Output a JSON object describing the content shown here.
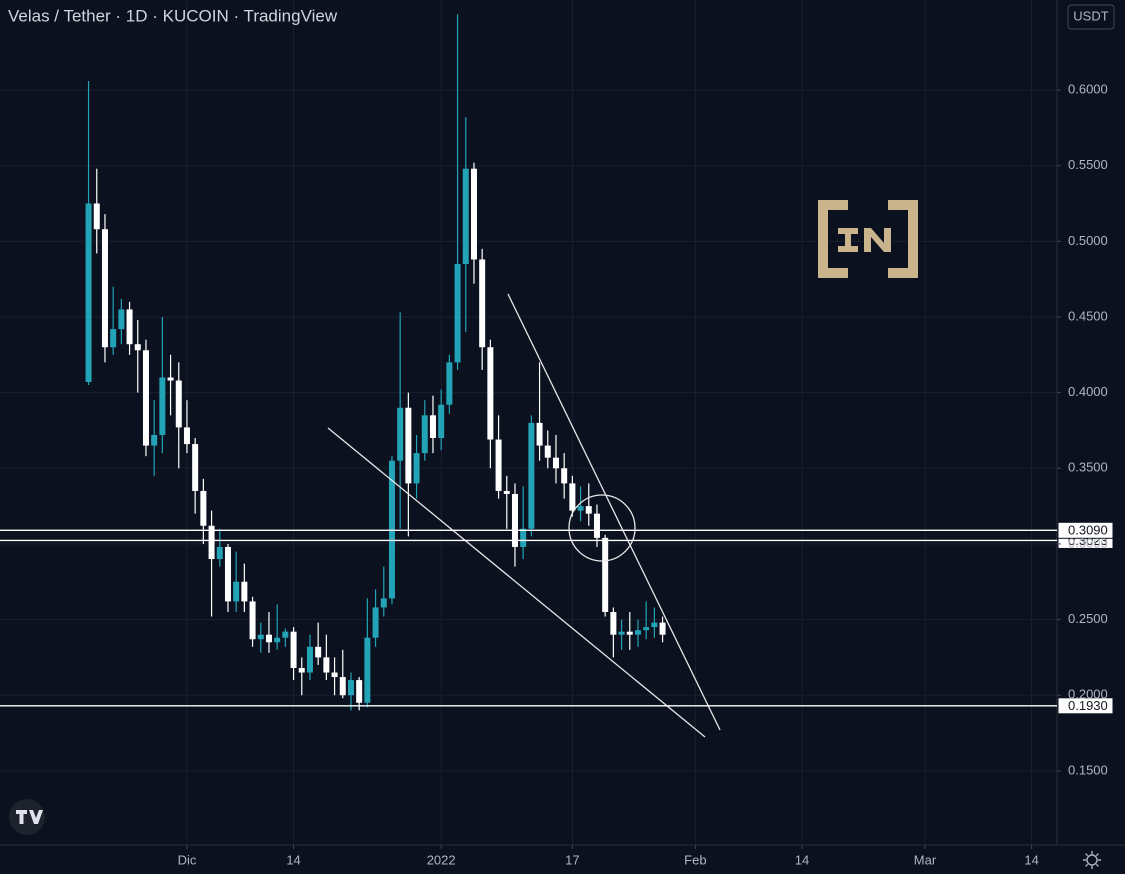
{
  "chart_data": {
    "type": "candlestick",
    "title": "Velas / Tether · 1D · KUCOIN · TradingView",
    "currency": "USDT",
    "up_color": "#22a3b6",
    "down_color": "#ffffff",
    "grid": true,
    "x": [
      0,
      1,
      2,
      3,
      4,
      5,
      6,
      7,
      8,
      9,
      10,
      11,
      12,
      13,
      14,
      15,
      16,
      17,
      18,
      19,
      20,
      21,
      22,
      23,
      24,
      25,
      26,
      27,
      28,
      29,
      30,
      31,
      32,
      33,
      34,
      35,
      36,
      37,
      38,
      39,
      40,
      41,
      42,
      43,
      44,
      45,
      46,
      47,
      48,
      49,
      50,
      51,
      52,
      53,
      54,
      55,
      56,
      57,
      58,
      59,
      60,
      61,
      62,
      63,
      64,
      65,
      66,
      67,
      68,
      69,
      70
    ],
    "open": [
      0.407,
      0.525,
      0.508,
      0.43,
      0.442,
      0.455,
      0.432,
      0.428,
      0.365,
      0.372,
      0.41,
      0.408,
      0.377,
      0.366,
      0.335,
      0.312,
      0.29,
      0.298,
      0.262,
      0.275,
      0.262,
      0.237,
      0.24,
      0.235,
      0.238,
      0.242,
      0.218,
      0.215,
      0.232,
      0.225,
      0.215,
      0.212,
      0.2,
      0.21,
      0.195,
      0.238,
      0.258,
      0.264,
      0.355,
      0.39,
      0.34,
      0.36,
      0.385,
      0.37,
      0.392,
      0.42,
      0.485,
      0.548,
      0.488,
      0.43,
      0.369,
      0.335,
      0.333,
      0.298,
      0.31,
      0.38,
      0.365,
      0.357,
      0.35,
      0.34,
      0.322,
      0.325,
      0.32,
      0.304,
      0.255,
      0.24,
      0.242,
      0.24,
      0.243,
      0.245,
      0.248
    ],
    "high": [
      0.606,
      0.548,
      0.518,
      0.47,
      0.462,
      0.46,
      0.448,
      0.435,
      0.395,
      0.45,
      0.425,
      0.42,
      0.395,
      0.37,
      0.343,
      0.322,
      0.31,
      0.3,
      0.295,
      0.287,
      0.265,
      0.248,
      0.255,
      0.26,
      0.244,
      0.245,
      0.225,
      0.24,
      0.248,
      0.24,
      0.225,
      0.23,
      0.215,
      0.212,
      0.264,
      0.27,
      0.285,
      0.358,
      0.453,
      0.4,
      0.372,
      0.395,
      0.398,
      0.402,
      0.425,
      0.65,
      0.582,
      0.552,
      0.495,
      0.435,
      0.385,
      0.345,
      0.34,
      0.338,
      0.385,
      0.42,
      0.375,
      0.372,
      0.36,
      0.345,
      0.338,
      0.34,
      0.326,
      0.306,
      0.258,
      0.25,
      0.255,
      0.25,
      0.262,
      0.258,
      0.252
    ],
    "low": [
      0.405,
      0.492,
      0.42,
      0.425,
      0.432,
      0.425,
      0.4,
      0.358,
      0.345,
      0.36,
      0.385,
      0.35,
      0.36,
      0.32,
      0.3,
      0.252,
      0.285,
      0.255,
      0.255,
      0.255,
      0.232,
      0.228,
      0.228,
      0.23,
      0.232,
      0.21,
      0.2,
      0.21,
      0.22,
      0.21,
      0.2,
      0.198,
      0.19,
      0.19,
      0.192,
      0.232,
      0.252,
      0.26,
      0.31,
      0.305,
      0.33,
      0.355,
      0.36,
      0.362,
      0.386,
      0.415,
      0.44,
      0.472,
      0.415,
      0.35,
      0.33,
      0.31,
      0.285,
      0.29,
      0.305,
      0.355,
      0.35,
      0.34,
      0.33,
      0.318,
      0.315,
      0.312,
      0.298,
      0.252,
      0.225,
      0.23,
      0.23,
      0.232,
      0.237,
      0.238,
      0.235
    ],
    "close": [
      0.525,
      0.508,
      0.43,
      0.442,
      0.455,
      0.432,
      0.428,
      0.365,
      0.372,
      0.41,
      0.408,
      0.377,
      0.366,
      0.335,
      0.312,
      0.29,
      0.298,
      0.262,
      0.275,
      0.262,
      0.237,
      0.24,
      0.235,
      0.238,
      0.242,
      0.218,
      0.215,
      0.232,
      0.225,
      0.215,
      0.212,
      0.2,
      0.21,
      0.195,
      0.238,
      0.258,
      0.264,
      0.355,
      0.39,
      0.34,
      0.36,
      0.385,
      0.37,
      0.392,
      0.42,
      0.485,
      0.548,
      0.488,
      0.43,
      0.369,
      0.335,
      0.333,
      0.298,
      0.31,
      0.38,
      0.365,
      0.357,
      0.35,
      0.34,
      0.322,
      0.325,
      0.32,
      0.304,
      0.255,
      0.24,
      0.242,
      0.24,
      0.243,
      0.245,
      0.248,
      0.24
    ],
    "xlim": [
      -10.8,
      118.1
    ],
    "xticks": [
      {
        "value": 12,
        "label": "Dic"
      },
      {
        "value": 25,
        "label": "14"
      },
      {
        "value": 43,
        "label": "2022"
      },
      {
        "value": 59,
        "label": "17"
      },
      {
        "value": 74,
        "label": "Feb"
      },
      {
        "value": 87,
        "label": "14"
      },
      {
        "value": 102,
        "label": "Mar"
      },
      {
        "value": 115,
        "label": "14"
      }
    ],
    "ylim": [
      0.101,
      0.6595
    ],
    "yticks": [
      {
        "value": 0.15,
        "label": "0.1500"
      },
      {
        "value": 0.2,
        "label": "0.2000"
      },
      {
        "value": 0.25,
        "label": "0.2500"
      },
      {
        "value": 0.3,
        "label": "0.3000"
      },
      {
        "value": 0.35,
        "label": "0.3500"
      },
      {
        "value": 0.4,
        "label": "0.4000"
      },
      {
        "value": 0.45,
        "label": "0.4500"
      },
      {
        "value": 0.5,
        "label": "0.5000"
      },
      {
        "value": 0.55,
        "label": "0.5500"
      },
      {
        "value": 0.6,
        "label": "0.6000"
      }
    ],
    "levels": [
      {
        "value": 0.3023,
        "label": "0.3023"
      },
      {
        "value": 0.309,
        "label": "0.3090"
      },
      {
        "value": 0.193,
        "label": "0.1930"
      }
    ]
  }
}
